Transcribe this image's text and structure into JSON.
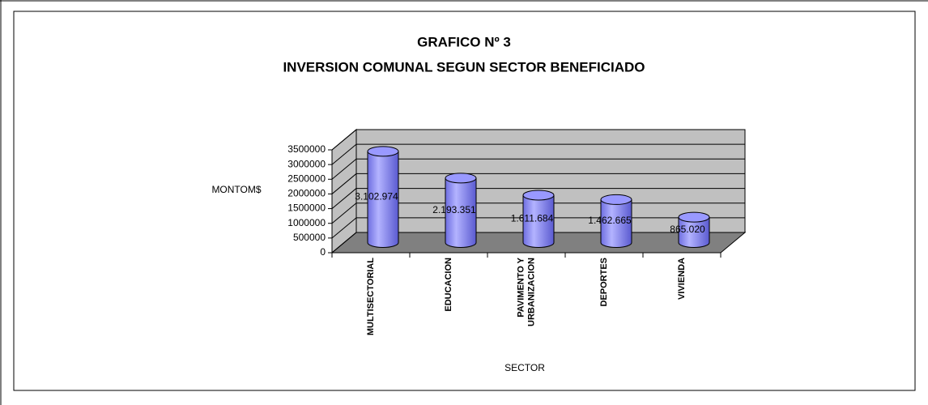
{
  "chart_data": {
    "type": "bar",
    "title": "GRAFICO Nº 3",
    "subtitle": "INVERSION COMUNAL SEGUN SECTOR BENEFICIADO",
    "y_label": "MONTOM$",
    "x_label": "SECTOR",
    "categories": [
      "MULTISECTORIAL",
      "EDUCACION",
      "PAVIMENTO Y URBANIZACION",
      "DEPORTES",
      "VIVIENDA"
    ],
    "values": [
      3102974,
      2193351,
      1611684,
      1462665,
      865020
    ],
    "value_labels": [
      "3.102.974",
      "2.193.351",
      "1.611.684",
      "1.462.665",
      "865.020"
    ],
    "color": "#9999ff",
    "ylim": [
      0,
      3500000
    ],
    "yticks": [
      0,
      500000,
      1000000,
      1500000,
      2000000,
      2500000,
      3000000,
      3500000
    ],
    "grid": true
  }
}
